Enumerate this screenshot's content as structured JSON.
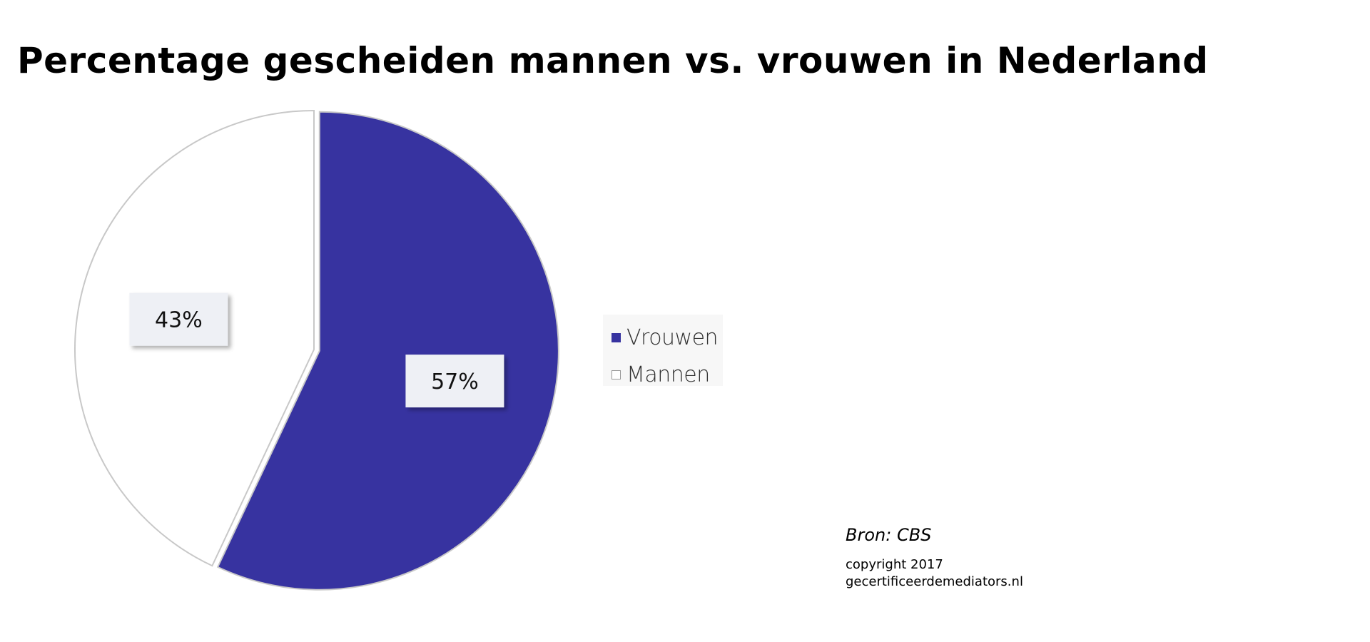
{
  "chart_data": {
    "type": "pie",
    "title": "Percentage gescheiden mannen vs. vrouwen in Nederland",
    "slices": [
      {
        "label": "Vrouwen",
        "value": 57,
        "data_label": "57%",
        "color": "#3733a0"
      },
      {
        "label": "Mannen",
        "value": 43,
        "data_label": "43%",
        "color": "#ffffff"
      }
    ],
    "legend_placement": "right"
  },
  "footer": {
    "source": "Bron: CBS",
    "copyright_line1": "copyright 2017",
    "copyright_line2": "gecertificeerdemediators.nl"
  }
}
